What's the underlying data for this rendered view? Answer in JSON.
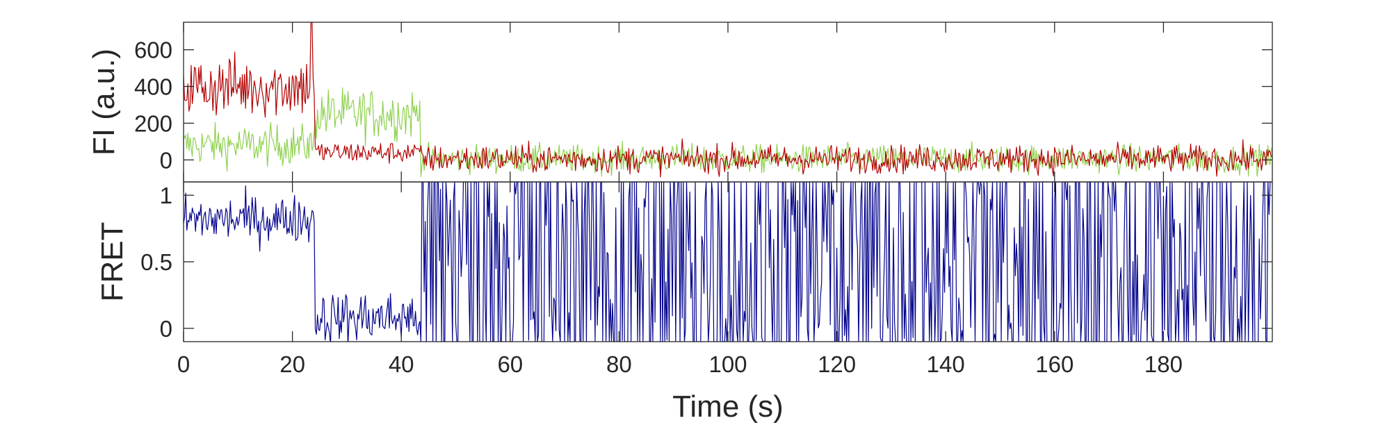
{
  "chart_data": [
    {
      "type": "line",
      "title": "",
      "xlabel": "",
      "ylabel": "FI (a.u.)",
      "xlim": [
        0,
        200
      ],
      "ylim": [
        -120,
        750
      ],
      "yticks": [
        0,
        200,
        400,
        600
      ],
      "ytick_labels": [
        "0",
        "200",
        "400",
        "600"
      ],
      "grid": false,
      "legend": "none",
      "x": {
        "start": 0,
        "step": 0.2,
        "end": 200
      },
      "series": [
        {
          "role": "donor",
          "color": "#8fd14f",
          "segments": [
            {
              "from": 0,
              "to": 24,
              "mean": 80,
              "noise": 55
            },
            {
              "from": 24,
              "to": 43.6,
              "mean": 250,
              "noise": 70
            },
            {
              "from": 43.6,
              "to": 200,
              "mean": 5,
              "noise": 38
            }
          ]
        },
        {
          "role": "acceptor",
          "color": "#b20000",
          "segments": [
            {
              "from": 0,
              "to": 24,
              "mean": 400,
              "noise": 85,
              "peak": {
                "x": 23.5,
                "y": 760
              }
            },
            {
              "from": 24,
              "to": 43.6,
              "mean": 40,
              "noise": 30
            },
            {
              "from": 43.6,
              "to": 200,
              "mean": 5,
              "noise": 38
            }
          ]
        }
      ]
    },
    {
      "type": "line",
      "title": "",
      "xlabel": "Time (s)",
      "ylabel": "FRET",
      "xlim": [
        0,
        200
      ],
      "ylim": [
        -0.1,
        1.1
      ],
      "xticks": [
        0,
        20,
        40,
        60,
        80,
        100,
        120,
        140,
        160,
        180
      ],
      "xtick_labels": [
        "0",
        "20",
        "40",
        "60",
        "80",
        "100",
        "120",
        "140",
        "160",
        "180"
      ],
      "yticks": [
        0,
        0.5,
        1
      ],
      "ytick_labels": [
        "0",
        "0.5",
        "1"
      ],
      "grid": false,
      "legend": "none",
      "x": {
        "start": 0,
        "step": 0.2,
        "end": 200
      },
      "series": [
        {
          "role": "fret",
          "color": "#00008b",
          "segments": [
            {
              "from": 0,
              "to": 24,
              "mean": 0.82,
              "noise": 0.09
            },
            {
              "from": 24,
              "to": 43.6,
              "mean": 0.08,
              "noise": 0.1
            },
            {
              "from": 43.6,
              "to": 200,
              "mean": 0.5,
              "noise": 1.2,
              "clip": [
                -0.1,
                1.1
              ]
            }
          ]
        }
      ]
    }
  ]
}
